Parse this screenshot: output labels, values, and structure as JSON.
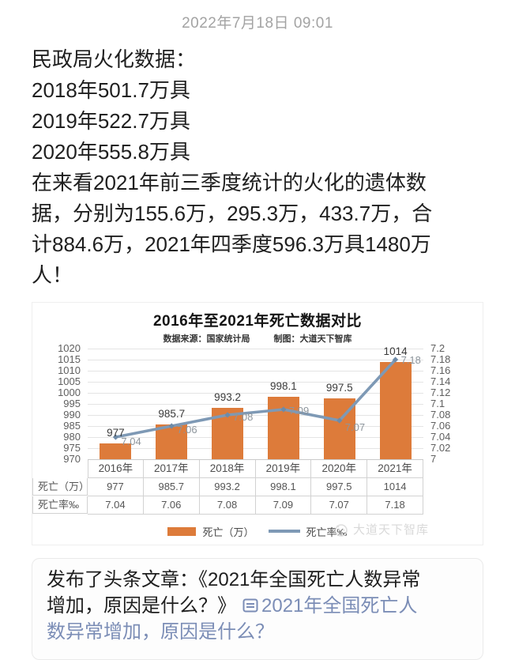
{
  "post": {
    "timestamp": "2022年7月18日 09:01",
    "body_lines": [
      "民政局火化数据：",
      "2018年501.7万具",
      "2019年522.7万具",
      "2020年555.8万具",
      "在来看2021年前三季度统计的火化的遗体数",
      "据，分别为155.6万，295.3万，433.7万，合",
      "计884.6万，2021年四季度596.3万具1480万",
      "人！"
    ]
  },
  "chart": {
    "title": "2016年至2021年死亡数据对比",
    "source_label": "数据来源：国家统计局",
    "credit_label": "制图：大道天下智库",
    "watermark": "大道天下智库",
    "colors": {
      "bar": "#dd7b3a",
      "line": "#7e99b5",
      "marker": "#6e8ba8",
      "gridline": "#e4e4e4",
      "axis_line": "#c9c9c9",
      "bar_label": "#3a3a3a",
      "line_label": "#8d959c",
      "tick_label": "#5f5f5f",
      "table_border": "#d2d2d2"
    }
  },
  "chart_data": {
    "type": "bar+line",
    "title": "2016年至2021年死亡数据对比",
    "categories": [
      "2016年",
      "2017年",
      "2018年",
      "2019年",
      "2020年",
      "2021年"
    ],
    "series": [
      {
        "name": "死亡（万）",
        "chart": "bar",
        "axis": "left",
        "values": [
          977,
          985.7,
          993.2,
          998.1,
          997.5,
          1014
        ],
        "labels": [
          "977",
          "985.7",
          "993.2",
          "998.1",
          "997.5",
          "1014"
        ]
      },
      {
        "name": "死亡率‰",
        "chart": "line",
        "axis": "right",
        "values": [
          7.04,
          7.06,
          7.08,
          7.09,
          7.07,
          7.18
        ],
        "labels": [
          "7.04",
          "7.06",
          "7.08",
          "7.09",
          "7.07",
          "7.18"
        ]
      }
    ],
    "left_axis": {
      "min": 970,
      "max": 1020,
      "step": 5,
      "tick_labels": [
        "1020",
        "1015",
        "1010",
        "1005",
        "1000",
        "995",
        "990",
        "985",
        "980",
        "975",
        "970"
      ]
    },
    "right_axis": {
      "min": 7,
      "max": 7.2,
      "step": 0.02,
      "tick_labels": [
        "7.2",
        "7.18",
        "7.16",
        "7.14",
        "7.12",
        "7.1",
        "7.08",
        "7.06",
        "7.04",
        "7.02",
        "7"
      ]
    },
    "grid": true,
    "legend_position": "bottom",
    "data_table": {
      "row_headers": [
        "死亡（万）",
        "死亡率‰"
      ],
      "rows": [
        [
          "977",
          "985.7",
          "993.2",
          "998.1",
          "997.5",
          "1014"
        ],
        [
          "7.04",
          "7.06",
          "7.08",
          "7.09",
          "7.07",
          "7.18"
        ]
      ]
    }
  },
  "footer_card": {
    "prefix": "发布了头条文章：《2021年全国死亡人数异常增加，原因是什么？》",
    "link_text": "2021年全国死亡人数异常增加，原因是什么？",
    "link_color": "#7b8db6"
  }
}
